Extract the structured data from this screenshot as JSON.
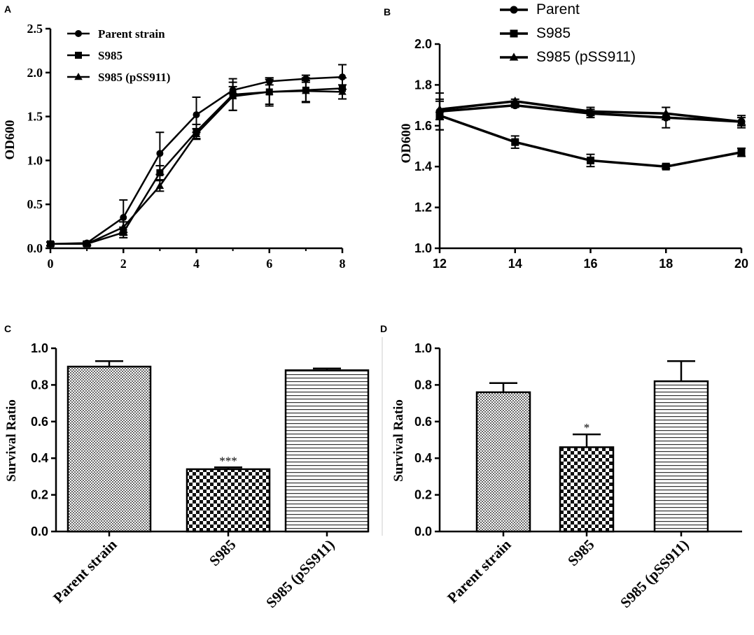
{
  "chart_data": [
    {
      "panel": "A",
      "type": "line",
      "xlabel": "",
      "ylabel": "OD600",
      "xlim": [
        0,
        8
      ],
      "ylim": [
        0,
        2.5
      ],
      "xticks": [
        "0",
        "2",
        "4",
        "6",
        "8"
      ],
      "yticks": [
        "0.0",
        "0.5",
        "1.0",
        "1.5",
        "2.0",
        "2.5"
      ],
      "series": [
        {
          "name": "Parent strain",
          "marker": "circle",
          "x": [
            0,
            1,
            2,
            3,
            4,
            5,
            6,
            7,
            8
          ],
          "values": [
            0.05,
            0.06,
            0.35,
            1.08,
            1.52,
            1.8,
            1.9,
            1.93,
            1.95
          ],
          "errors": [
            0.02,
            0.02,
            0.2,
            0.24,
            0.2,
            0.04,
            0.04,
            0.04,
            0.14
          ]
        },
        {
          "name": "S985",
          "marker": "square",
          "x": [
            0,
            1,
            2,
            3,
            4,
            5,
            6,
            7,
            8
          ],
          "values": [
            0.05,
            0.05,
            0.18,
            0.86,
            1.33,
            1.75,
            1.78,
            1.8,
            1.82
          ],
          "errors": [
            0.02,
            0.02,
            0.06,
            0.08,
            0.08,
            0.18,
            0.16,
            0.14,
            0.12
          ]
        },
        {
          "name": "S985 (pSS911)",
          "marker": "triangle",
          "x": [
            0,
            1,
            2,
            3,
            4,
            5,
            6,
            7,
            8
          ],
          "values": [
            0.05,
            0.05,
            0.24,
            0.71,
            1.3,
            1.73,
            1.78,
            1.79,
            1.78
          ],
          "errors": [
            0.02,
            0.02,
            0.06,
            0.06,
            0.06,
            0.16,
            0.14,
            0.12,
            0.08
          ]
        }
      ]
    },
    {
      "panel": "B",
      "type": "line",
      "xlabel": "",
      "ylabel": "OD600",
      "xlim": [
        12,
        20
      ],
      "ylim": [
        1.0,
        2.0
      ],
      "xticks": [
        "12",
        "14",
        "16",
        "18",
        "20"
      ],
      "yticks": [
        "1.0",
        "1.2",
        "1.4",
        "1.6",
        "1.8",
        "2.0"
      ],
      "series": [
        {
          "name": "Parent",
          "marker": "circle",
          "x": [
            12,
            14,
            16,
            18,
            20
          ],
          "values": [
            1.67,
            1.7,
            1.66,
            1.64,
            1.62
          ],
          "errors": [
            0.09,
            0.01,
            0.02,
            0.05,
            0.03
          ]
        },
        {
          "name": "S985",
          "marker": "square",
          "x": [
            12,
            14,
            16,
            18,
            20
          ],
          "values": [
            1.65,
            1.52,
            1.43,
            1.4,
            1.47
          ],
          "errors": [
            0.07,
            0.03,
            0.03,
            0.01,
            0.02
          ]
        },
        {
          "name": "S985 (pSS911)",
          "marker": "triangle",
          "x": [
            12,
            14,
            16,
            18,
            20
          ],
          "values": [
            1.68,
            1.72,
            1.67,
            1.66,
            1.62
          ],
          "errors": [
            0.05,
            0.01,
            0.02,
            0.03,
            0.02
          ]
        }
      ]
    },
    {
      "panel": "C",
      "type": "bar",
      "ylabel": "Survival Ratio",
      "ylim": [
        0,
        1.0
      ],
      "yticks": [
        "0.0",
        "0.2",
        "0.4",
        "0.6",
        "0.8",
        "1.0"
      ],
      "categories": [
        "Parent strain",
        "S985",
        "S985 (pSS911)"
      ],
      "values": [
        0.9,
        0.34,
        0.88
      ],
      "errors": [
        0.03,
        0.01,
        0.01
      ],
      "annotations": [
        "",
        "***",
        ""
      ],
      "patterns": [
        "fine-check",
        "checker",
        "horizontal-lines"
      ]
    },
    {
      "panel": "D",
      "type": "bar",
      "ylabel": "Survival Ratio",
      "ylim": [
        0,
        1.0
      ],
      "yticks": [
        "0.0",
        "0.2",
        "0.4",
        "0.6",
        "0.8",
        "1.0"
      ],
      "categories": [
        "Parent strain",
        "S985",
        "S985 (pSS911)"
      ],
      "values": [
        0.76,
        0.46,
        0.82
      ],
      "errors": [
        0.05,
        0.07,
        0.11
      ],
      "annotations": [
        "",
        "*",
        ""
      ],
      "patterns": [
        "fine-check",
        "checker",
        "horizontal-lines"
      ]
    }
  ],
  "panel_labels": [
    "A",
    "B",
    "C",
    "D"
  ]
}
